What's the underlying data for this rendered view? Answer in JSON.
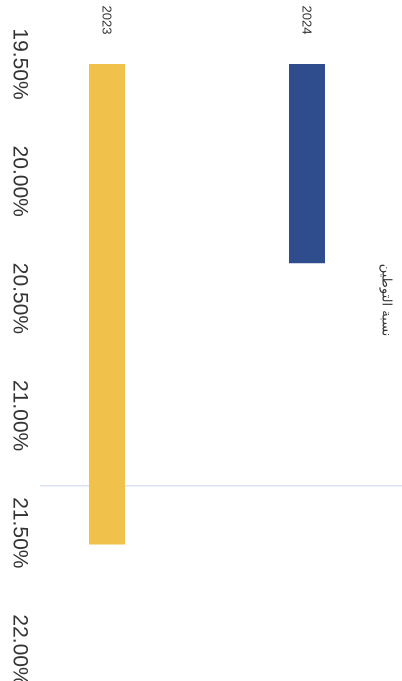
{
  "chart_data": {
    "type": "bar",
    "orientation": "rotated",
    "categories": [
      "2024",
      "2023"
    ],
    "series": [
      {
        "name": "نسبة التوطين",
        "values": [
          20.35,
          21.55
        ],
        "colors": [
          "#2f4d8c",
          "#f0c24b"
        ]
      }
    ],
    "ylim": [
      19.5,
      22.0
    ],
    "ticks": [
      "19.50%",
      "20.00%",
      "20.50%",
      "21.00%",
      "21.50%",
      "22.00%"
    ],
    "tick_values": [
      19.5,
      20.0,
      20.5,
      21.0,
      21.5,
      22.0
    ],
    "gridline": {
      "value": 21.3,
      "color": "#c9d3ee"
    }
  }
}
